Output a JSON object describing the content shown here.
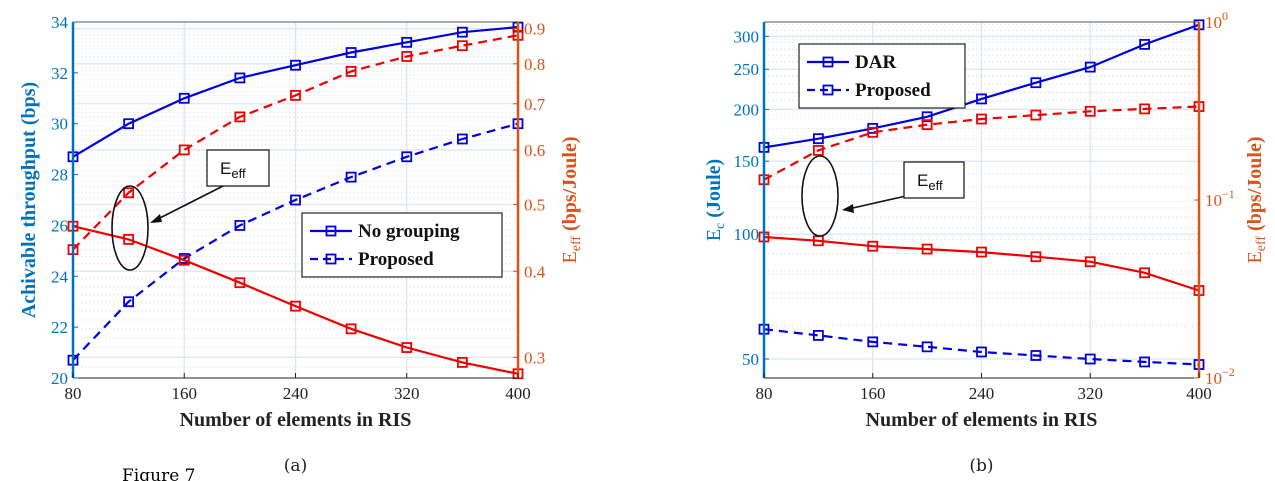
{
  "figure_note": "Figure 7",
  "chart_data": [
    {
      "type": "line",
      "caption": "(a)",
      "xlabel": "Number of elements in RIS",
      "ylabel_left": "Achivable throughput (bps)",
      "ylabel_right_main": "E",
      "ylabel_right_sub": "eff",
      "ylabel_right_rest": " (bps/Joule)",
      "xlim": [
        80,
        400
      ],
      "ylim_left": [
        20,
        34
      ],
      "ylim_right": [
        0.28,
        0.92
      ],
      "right_scale": "log",
      "xticks": [
        80,
        160,
        240,
        320,
        400
      ],
      "yticks_left": [
        20,
        22,
        24,
        26,
        28,
        30,
        32,
        34
      ],
      "yticks_right": [
        0.3,
        0.4,
        0.5,
        0.6,
        0.7,
        0.8,
        0.9
      ],
      "yticks_right_labels": [
        "0.3",
        "0.4",
        "0.5",
        "0.6",
        "0.7",
        "0.8",
        "0.9"
      ],
      "grid": true,
      "legend_position": "center-right",
      "annotation": {
        "main": "E",
        "sub": "eff"
      },
      "series": [
        {
          "name": "No grouping",
          "axis": "left",
          "color": "#0000dd",
          "dash": false,
          "x": [
            80,
            120,
            160,
            200,
            240,
            280,
            320,
            360,
            400
          ],
          "y": [
            28.7,
            30.0,
            31.0,
            31.8,
            32.3,
            32.8,
            33.2,
            33.6,
            33.8
          ]
        },
        {
          "name": "Proposed",
          "axis": "left",
          "color": "#0000dd",
          "dash": true,
          "x": [
            80,
            120,
            160,
            200,
            240,
            280,
            320,
            360,
            400
          ],
          "y": [
            20.7,
            23.0,
            24.7,
            26.0,
            27.0,
            27.9,
            28.7,
            29.4,
            30.0
          ]
        },
        {
          "axis": "right",
          "color": "#ee0000",
          "dash": false,
          "x": [
            80,
            120,
            160,
            200,
            240,
            280,
            320,
            360,
            400
          ],
          "y": [
            0.465,
            0.445,
            0.415,
            0.385,
            0.356,
            0.33,
            0.31,
            0.295,
            0.284
          ]
        },
        {
          "axis": "right",
          "color": "#ee0000",
          "dash": true,
          "x": [
            80,
            120,
            160,
            200,
            240,
            280,
            320,
            360,
            400
          ],
          "y": [
            0.43,
            0.52,
            0.6,
            0.67,
            0.72,
            0.78,
            0.82,
            0.85,
            0.88
          ]
        }
      ]
    },
    {
      "type": "line",
      "caption": "(b)",
      "xlabel": "Number of elements in RIS",
      "ylabel_left_main": "E",
      "ylabel_left_sub": "c",
      "ylabel_left_rest": " (Joule)",
      "ylabel_right_main": "E",
      "ylabel_right_sub": "eff",
      "ylabel_right_rest": " (bps/Joule)",
      "xlim": [
        80,
        400
      ],
      "ylim_left": [
        45,
        325
      ],
      "ylim_right": [
        0.01,
        1
      ],
      "left_scale": "log",
      "right_scale": "log",
      "xticks": [
        80,
        160,
        240,
        320,
        400
      ],
      "yticks_left": [
        50,
        100,
        150,
        200,
        250,
        300
      ],
      "yticks_right": [
        0.01,
        0.1,
        1
      ],
      "yticks_right_labels": [
        "10",
        "10",
        "10"
      ],
      "yticks_right_exps": [
        "−2",
        "−1",
        "0"
      ],
      "grid": true,
      "legend_position": "top-left",
      "annotation": {
        "main": "E",
        "sub": "eff"
      },
      "series": [
        {
          "name": "DAR",
          "axis": "left",
          "color": "#0000dd",
          "dash": false,
          "x": [
            80,
            120,
            160,
            200,
            240,
            280,
            320,
            360,
            400
          ],
          "y": [
            162,
            170,
            180,
            192,
            212,
            232,
            253,
            287,
            320
          ]
        },
        {
          "name": "Proposed",
          "axis": "left",
          "color": "#0000dd",
          "dash": true,
          "x": [
            80,
            120,
            160,
            200,
            240,
            280,
            320,
            360,
            400
          ],
          "y": [
            59,
            57,
            55,
            53.5,
            52,
            51,
            50,
            49.2,
            48.5
          ]
        },
        {
          "axis": "right",
          "color": "#ee0000",
          "dash": false,
          "x": [
            80,
            120,
            160,
            200,
            240,
            280,
            320,
            360,
            400
          ],
          "y": [
            0.062,
            0.059,
            0.055,
            0.053,
            0.051,
            0.048,
            0.045,
            0.039,
            0.031
          ]
        },
        {
          "axis": "right",
          "color": "#ee0000",
          "dash": true,
          "x": [
            80,
            120,
            160,
            200,
            240,
            280,
            320,
            360,
            400
          ],
          "y": [
            0.13,
            0.19,
            0.24,
            0.265,
            0.285,
            0.3,
            0.315,
            0.325,
            0.335
          ]
        }
      ]
    }
  ],
  "colors": {
    "left_axis": "#0072bd",
    "right_axis": "#d95319",
    "grid": "#dfe6ee"
  }
}
